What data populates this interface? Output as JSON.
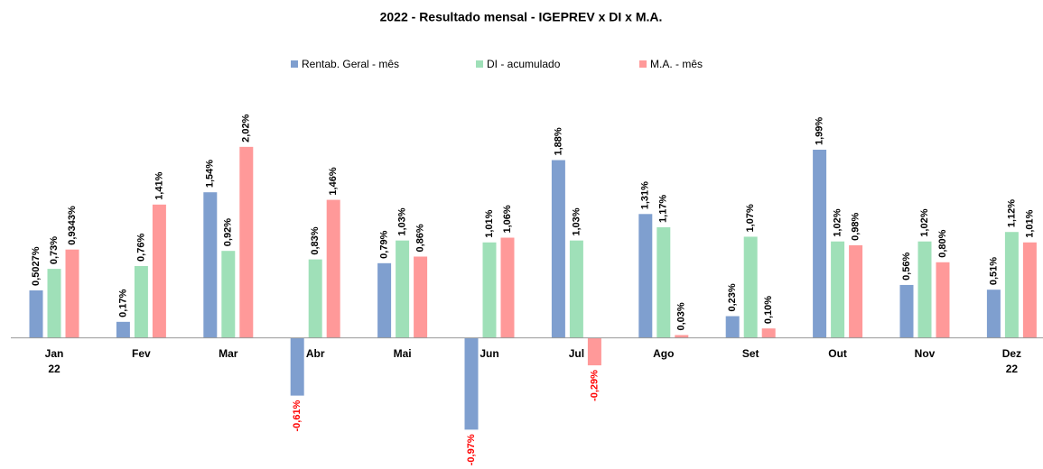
{
  "chart_data": {
    "type": "bar",
    "title": "2022 - Resultado mensal - IGEPREV x DI x M.A.",
    "categories": [
      "Jan",
      "Fev",
      "Mar",
      "Abr",
      "Mai",
      "Jun",
      "Jul",
      "Ago",
      "Set",
      "Out",
      "Nov",
      "Dez"
    ],
    "category_sublabels": [
      "22",
      null,
      null,
      null,
      null,
      null,
      null,
      null,
      null,
      null,
      null,
      "22"
    ],
    "ylim": [
      -1.1,
      2.4
    ],
    "series": [
      {
        "name": "Rentab. Geral - mês",
        "color": "#7f9fcf",
        "values": [
          0.5027,
          0.17,
          1.54,
          -0.61,
          0.79,
          -0.97,
          1.88,
          1.31,
          0.23,
          1.99,
          0.56,
          0.51
        ],
        "value_labels": [
          "0,5027%",
          "0,17%",
          "1,54%",
          "-0,61%",
          "0,79%",
          "-0,97%",
          "1,88%",
          "1,31%",
          "0,23%",
          "1,99%",
          "0,56%",
          "0,51%"
        ]
      },
      {
        "name": "DI - acumulado",
        "color": "#9fe0b8",
        "values": [
          0.73,
          0.76,
          0.92,
          0.83,
          1.03,
          1.01,
          1.03,
          1.17,
          1.07,
          1.02,
          1.02,
          1.12
        ],
        "value_labels": [
          "0,73%",
          "0,76%",
          "0,92%",
          "0,83%",
          "1,03%",
          "1,01%",
          "1,03%",
          "1,17%",
          "1,07%",
          "1,02%",
          "1,02%",
          "1,12%"
        ]
      },
      {
        "name": "M.A. - mês",
        "color": "#ff9999",
        "values": [
          0.9343,
          1.41,
          2.02,
          1.46,
          0.86,
          1.06,
          -0.29,
          0.03,
          0.1,
          0.98,
          0.8,
          1.01
        ],
        "value_labels": [
          "0,9343%",
          "1,41%",
          "2,02%",
          "1,46%",
          "0,86%",
          "1,06%",
          "-0,29%",
          "0,03%",
          "0,10%",
          "0,98%",
          "0,80%",
          "1,01%"
        ]
      }
    ]
  }
}
